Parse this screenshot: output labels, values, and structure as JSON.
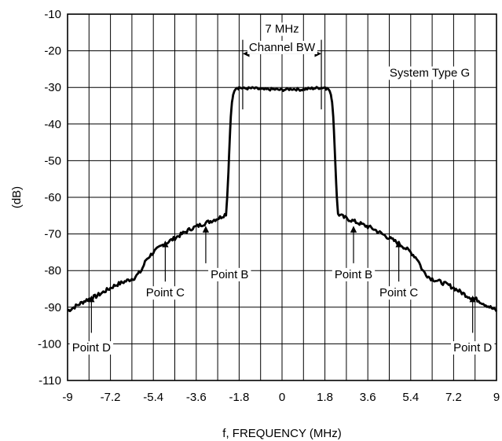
{
  "chart_data": {
    "type": "line",
    "xlabel": "f, FREQUENCY (MHz)",
    "ylabel": "(dB)",
    "xlim": [
      -9,
      9
    ],
    "ylim": [
      -110,
      -10
    ],
    "x_ticks": [
      -9,
      -7.2,
      -5.4,
      -3.6,
      -1.8,
      0,
      1.8,
      3.6,
      5.4,
      7.2,
      9
    ],
    "x_tick_labels": [
      "-9",
      "-7.2",
      "-5.4",
      "-3.6",
      "-1.8",
      "0",
      "1.8",
      "3.6",
      "5.4",
      "7.2",
      "9"
    ],
    "y_ticks": [
      -10,
      -20,
      -30,
      -40,
      -50,
      -60,
      -70,
      -80,
      -90,
      -100,
      -110
    ],
    "y_tick_labels": [
      "-10",
      "-20",
      "-30",
      "-40",
      "-50",
      "-60",
      "-70",
      "-80",
      "-90",
      "-100",
      "-110"
    ],
    "x_grid_step": 0.9,
    "grid": true,
    "series": [
      {
        "x": [
          -9,
          -8.6,
          -8.2,
          -7.8,
          -7.4,
          -7.0,
          -6.6,
          -6.2,
          -5.9,
          -5.7,
          -5.4,
          -5.0,
          -4.6,
          -4.2,
          -3.8,
          -3.4,
          -3.0,
          -2.6,
          -2.35,
          -2.3,
          -2.25,
          -2.2,
          -2.15,
          -2.1,
          -2.05,
          -2.0,
          -1.95,
          -1.9,
          -1.85,
          -1.8,
          -1.6,
          -1.2,
          -0.8,
          -0.4,
          0,
          0.4,
          0.8,
          1.2,
          1.6,
          1.8,
          1.85,
          1.9,
          1.95,
          2.0,
          2.05,
          2.1,
          2.15,
          2.2,
          2.25,
          2.3,
          2.35,
          2.6,
          3.0,
          3.4,
          3.8,
          4.2,
          4.6,
          5.0,
          5.4,
          5.7,
          5.9,
          6.2,
          6.6,
          7.0,
          7.4,
          7.8,
          8.2,
          8.6,
          9
        ],
        "y": [
          -91,
          -89.5,
          -88,
          -87,
          -85.5,
          -84,
          -83,
          -82,
          -80,
          -77,
          -75,
          -73,
          -71.5,
          -70,
          -68.5,
          -67.5,
          -66.5,
          -65.5,
          -64.5,
          -60,
          -53,
          -45,
          -38,
          -34,
          -32,
          -31,
          -30.5,
          -30.2,
          -30.1,
          -30,
          -30.3,
          -30.2,
          -30.6,
          -30.5,
          -30.7,
          -30.4,
          -30.6,
          -30.3,
          -30.1,
          -30,
          -30.1,
          -30.2,
          -30.5,
          -31,
          -32,
          -34,
          -38,
          -45,
          -53,
          -60,
          -64.5,
          -65.5,
          -66.5,
          -67.5,
          -68.5,
          -70,
          -71.5,
          -73,
          -75,
          -77,
          -80,
          -82,
          -83,
          -84,
          -85.5,
          -87,
          -88,
          -89.5,
          -91
        ]
      }
    ],
    "annotations": [
      {
        "text": "7 MHz",
        "x": 0,
        "y": -14
      },
      {
        "text": "Channel BW",
        "x": 0,
        "y": -19
      },
      {
        "text": "System Type G",
        "x": 6.2,
        "y": -26
      }
    ],
    "bandwidth_marker": {
      "x1": -1.65,
      "x2": 1.65,
      "y": -20.8
    },
    "points": [
      {
        "label": "Point B",
        "label_x": -2.2,
        "label_y": -81,
        "arrow_x": -3.2,
        "arrow_from": -78,
        "arrow_to": -68
      },
      {
        "label": "Point B",
        "label_x": 3.0,
        "label_y": -81,
        "arrow_x": 3.0,
        "arrow_from": -78,
        "arrow_to": -68
      },
      {
        "label": "Point C",
        "label_x": -4.9,
        "label_y": -86,
        "arrow_x": -4.9,
        "arrow_from": -83,
        "arrow_to": -72
      },
      {
        "label": "Point C",
        "label_x": 4.9,
        "label_y": -86,
        "arrow_x": 4.9,
        "arrow_from": -83,
        "arrow_to": -72
      },
      {
        "label": "Point D",
        "label_x": -8.0,
        "label_y": -101,
        "arrow_x": -8.0,
        "arrow_from": -97,
        "arrow_to": -87
      },
      {
        "label": "Point D",
        "label_x": 8.0,
        "label_y": -101,
        "arrow_x": 8.0,
        "arrow_from": -97,
        "arrow_to": -87
      }
    ]
  }
}
